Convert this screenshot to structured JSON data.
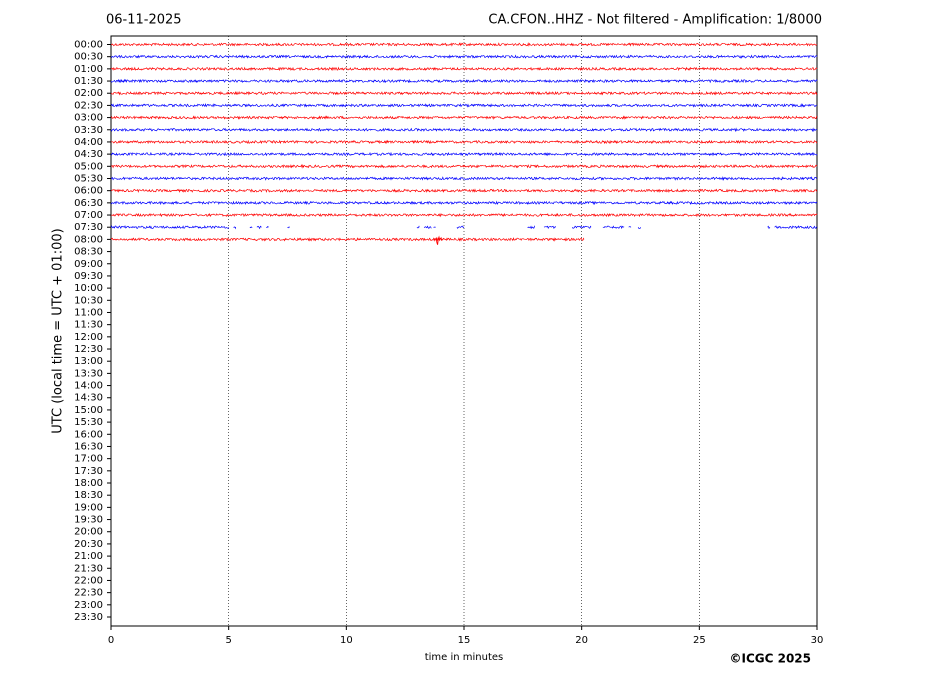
{
  "chart_data": {
    "type": "helicorder",
    "date": "06-11-2025",
    "title": "CA.CFON..HHZ - Not filtered - Amplification: 1/8000",
    "ylabel": "UTC (local time = UTC + 01:00)",
    "xlabel": "time in minutes",
    "credit": "©ICGC 2025",
    "xlim": [
      0,
      30
    ],
    "xticks": [
      0,
      5,
      10,
      15,
      20,
      25,
      30
    ],
    "xgrid": true,
    "categories": [
      "00:00",
      "00:30",
      "01:00",
      "01:30",
      "02:00",
      "02:30",
      "03:00",
      "03:30",
      "04:00",
      "04:30",
      "05:00",
      "05:30",
      "06:00",
      "06:30",
      "07:00",
      "07:30",
      "08:00",
      "08:30",
      "09:00",
      "09:30",
      "10:00",
      "10:30",
      "11:00",
      "11:30",
      "12:00",
      "12:30",
      "13:00",
      "13:30",
      "14:00",
      "14:30",
      "15:00",
      "15:30",
      "16:00",
      "16:30",
      "17:00",
      "17:30",
      "18:00",
      "18:30",
      "19:00",
      "19:30",
      "20:00",
      "20:30",
      "21:00",
      "21:30",
      "22:00",
      "22:30",
      "23:00",
      "23:30"
    ],
    "traces": [
      {
        "color": "#ff0000",
        "segments": [
          [
            0,
            30
          ]
        ]
      },
      {
        "color": "#0000ff",
        "segments": [
          [
            0,
            30
          ]
        ]
      },
      {
        "color": "#ff0000",
        "segments": [
          [
            0,
            30
          ]
        ]
      },
      {
        "color": "#0000ff",
        "segments": [
          [
            0,
            30
          ]
        ]
      },
      {
        "color": "#ff0000",
        "segments": [
          [
            0,
            30
          ]
        ]
      },
      {
        "color": "#0000ff",
        "segments": [
          [
            0,
            30
          ]
        ]
      },
      {
        "color": "#ff0000",
        "segments": [
          [
            0,
            30
          ]
        ]
      },
      {
        "color": "#0000ff",
        "segments": [
          [
            0,
            30
          ]
        ]
      },
      {
        "color": "#ff0000",
        "segments": [
          [
            0,
            30
          ]
        ]
      },
      {
        "color": "#0000ff",
        "segments": [
          [
            0,
            30
          ]
        ]
      },
      {
        "color": "#ff0000",
        "segments": [
          [
            0,
            30
          ]
        ]
      },
      {
        "color": "#0000ff",
        "segments": [
          [
            0,
            30
          ]
        ]
      },
      {
        "color": "#ff0000",
        "segments": [
          [
            0,
            30
          ]
        ]
      },
      {
        "color": "#0000ff",
        "segments": [
          [
            0,
            30
          ]
        ]
      },
      {
        "color": "#ff0000",
        "segments": [
          [
            0,
            30
          ]
        ]
      },
      {
        "color": "#0000ff",
        "segments": [
          [
            0,
            5.0
          ],
          [
            5.2,
            5.3
          ],
          [
            5.9,
            6.0
          ],
          [
            6.2,
            6.4
          ],
          [
            6.6,
            6.7
          ],
          [
            7.5,
            7.6
          ],
          [
            13.0,
            13.1
          ],
          [
            13.3,
            13.6
          ],
          [
            13.7,
            13.8
          ],
          [
            14.7,
            15.0
          ],
          [
            17.7,
            18.0
          ],
          [
            18.4,
            18.9
          ],
          [
            19.6,
            20.4
          ],
          [
            20.9,
            21.8
          ],
          [
            22.0,
            22.1
          ],
          [
            22.4,
            22.5
          ],
          [
            27.9,
            28.0
          ],
          [
            28.2,
            30
          ]
        ]
      },
      {
        "color": "#ff0000",
        "segments": [
          [
            0,
            20.1
          ]
        ],
        "spikes": [
          13.9
        ]
      }
    ]
  }
}
